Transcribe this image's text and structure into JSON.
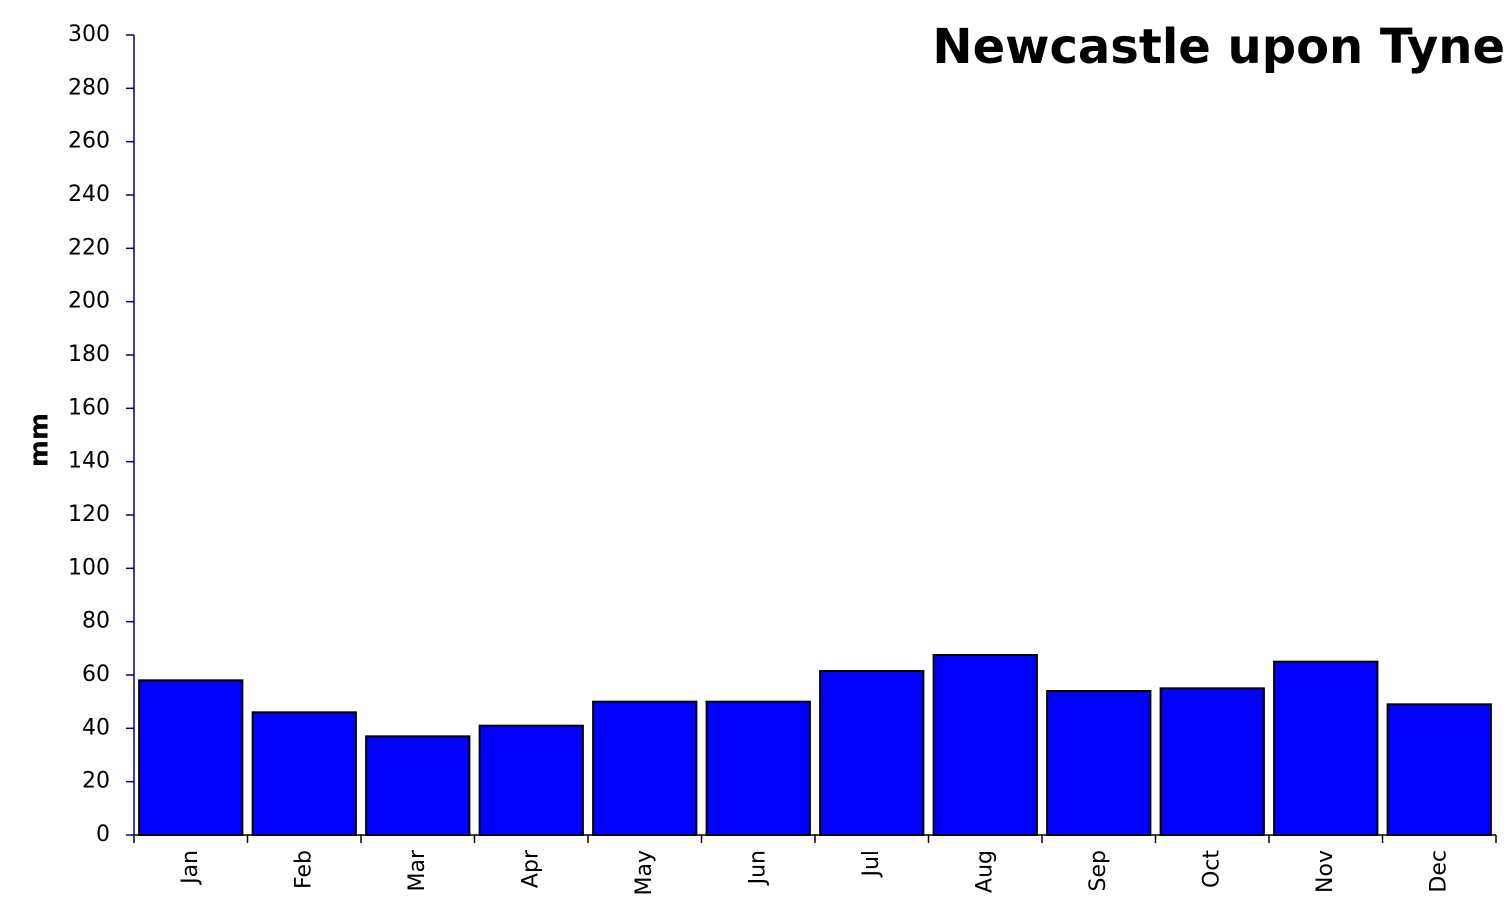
{
  "chart_data": {
    "type": "bar",
    "title": "Newcastle upon Tyne",
    "y_label": "mm",
    "categories": [
      "Jan",
      "Feb",
      "Mar",
      "Apr",
      "May",
      "Jun",
      "Jul",
      "Aug",
      "Sep",
      "Oct",
      "Nov",
      "Dec"
    ],
    "values": [
      58,
      46,
      37,
      41,
      50,
      50,
      61.5,
      67.5,
      54,
      55,
      65,
      49
    ],
    "color": "#0000ff",
    "ylim": [
      0,
      300
    ],
    "yticks": [
      0,
      20,
      40,
      60,
      80,
      100,
      120,
      140,
      160,
      180,
      200,
      220,
      240,
      260,
      280,
      300
    ]
  }
}
